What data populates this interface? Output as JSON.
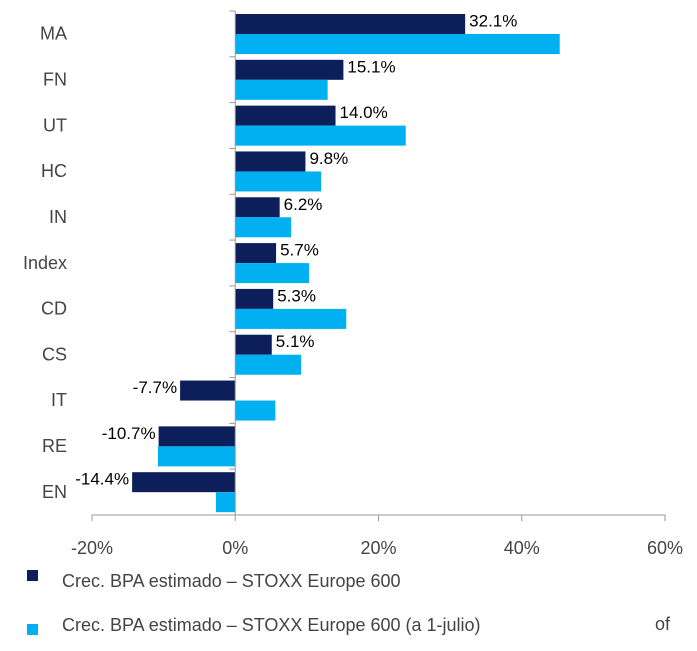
{
  "chart_data": {
    "type": "barh",
    "categories": [
      "MA",
      "FN",
      "UT",
      "HC",
      "IN",
      "Index",
      "CD",
      "CS",
      "IT",
      "RE",
      "EN"
    ],
    "series": [
      {
        "name": "Crec. BPA estimado – STOXX Europe 600",
        "color": "#0c1f5b",
        "values": [
          32.1,
          15.1,
          14.0,
          9.8,
          6.2,
          5.7,
          5.3,
          5.1,
          -7.7,
          -10.7,
          -14.4
        ],
        "value_labels": [
          "32.1%",
          "15.1%",
          "14.0%",
          "9.8%",
          "6.2%",
          "5.7%",
          "5.3%",
          "5.1%",
          "-7.7%",
          "-10.7%",
          "-14.4%"
        ]
      },
      {
        "name": "Crec. BPA estimado – STOXX Europe 600 (a 1-julio)",
        "color": "#00b0f0",
        "values": [
          45.3,
          12.9,
          23.8,
          12.0,
          7.8,
          10.3,
          15.5,
          9.2,
          5.6,
          -10.8,
          -2.7
        ]
      }
    ],
    "xlim": [
      -20,
      60
    ],
    "xticks": [
      {
        "value": -20,
        "label": "-20%"
      },
      {
        "value": 0,
        "label": "0%"
      },
      {
        "value": 20,
        "label": "20%"
      },
      {
        "value": 40,
        "label": "40%"
      },
      {
        "value": 60,
        "label": "60%"
      }
    ],
    "annotations": [
      "of"
    ],
    "legend": "bottom-left"
  }
}
